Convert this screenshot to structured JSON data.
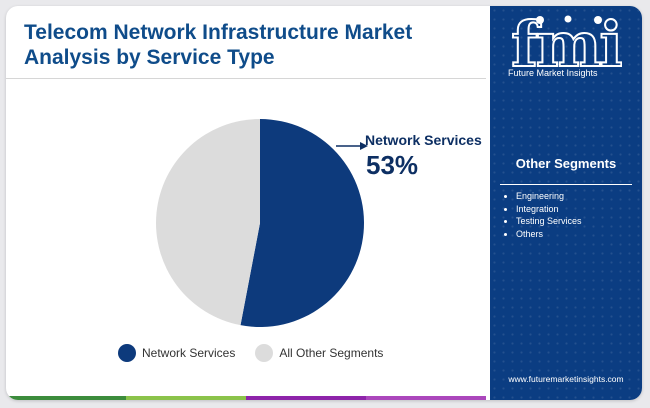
{
  "title": "Telecom Network Infrastructure Market Analysis by Service Type",
  "brand": {
    "logo_text": "fmi",
    "tagline": "Future Market Insights",
    "website": "www.futuremarketinsights.com"
  },
  "side_panel": {
    "heading": "Other Segments",
    "items": [
      "Engineering",
      "Integration",
      "Testing Services",
      "Others"
    ]
  },
  "callout": {
    "label": "Network Services",
    "value": "53%"
  },
  "colors": {
    "network_services": "#0d3a7c",
    "all_other_segments": "#dcdcdc",
    "accent_bar": [
      "#3c8c3c",
      "#8bc34a",
      "#8e24aa",
      "#ab47bc"
    ]
  },
  "chart_data": {
    "type": "pie",
    "title": "",
    "slices": [
      {
        "label": "Network Services",
        "value": 53
      },
      {
        "label": "All Other Segments",
        "value": 47
      }
    ],
    "legend": {
      "position": "bottom",
      "entries": [
        "Network Services",
        "All Other Segments"
      ]
    }
  }
}
